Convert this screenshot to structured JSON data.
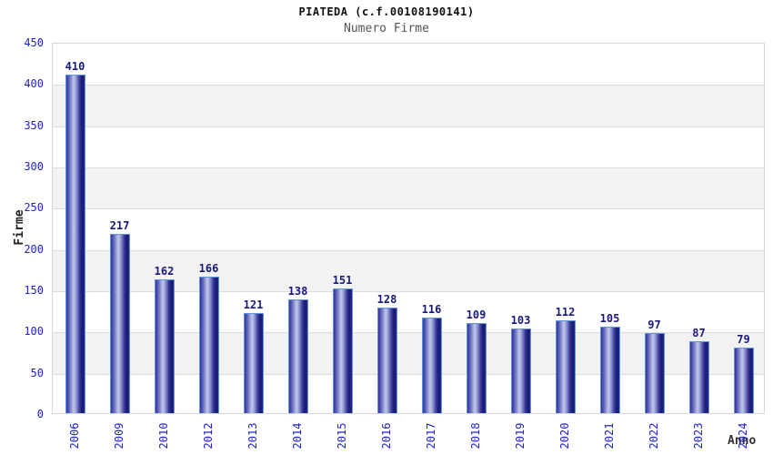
{
  "chart_data": {
    "type": "bar",
    "title": "PIATEDA (c.f.00108190141)",
    "subtitle": "Numero Firme",
    "categories": [
      "2006",
      "2009",
      "2010",
      "2012",
      "2013",
      "2014",
      "2015",
      "2016",
      "2017",
      "2018",
      "2019",
      "2020",
      "2021",
      "2022",
      "2023",
      "2024"
    ],
    "values": [
      410,
      217,
      162,
      166,
      121,
      138,
      151,
      128,
      116,
      109,
      103,
      112,
      105,
      97,
      87,
      79
    ],
    "xlabel": "Anno",
    "ylabel": "Firme",
    "ylim": [
      0,
      450
    ],
    "ytick_step": 50,
    "yticks": [
      0,
      50,
      100,
      150,
      200,
      250,
      300,
      350,
      400,
      450
    ],
    "grid": "horizontal gridlines with alternating shaded bands",
    "legend": "none",
    "colors": {
      "tick_label_blue": "#2222cc",
      "value_label_navy": "#18187e",
      "bar_dark": "#23238a",
      "bar_light": "#c3c8ea",
      "bar_outline": "#5f98d8",
      "band_gray": "#f2f2f2",
      "gridline": "#dcdcdc",
      "plot_border": "#d6d6d6",
      "title_color": "#111111",
      "subtitle_color": "#555555"
    }
  }
}
